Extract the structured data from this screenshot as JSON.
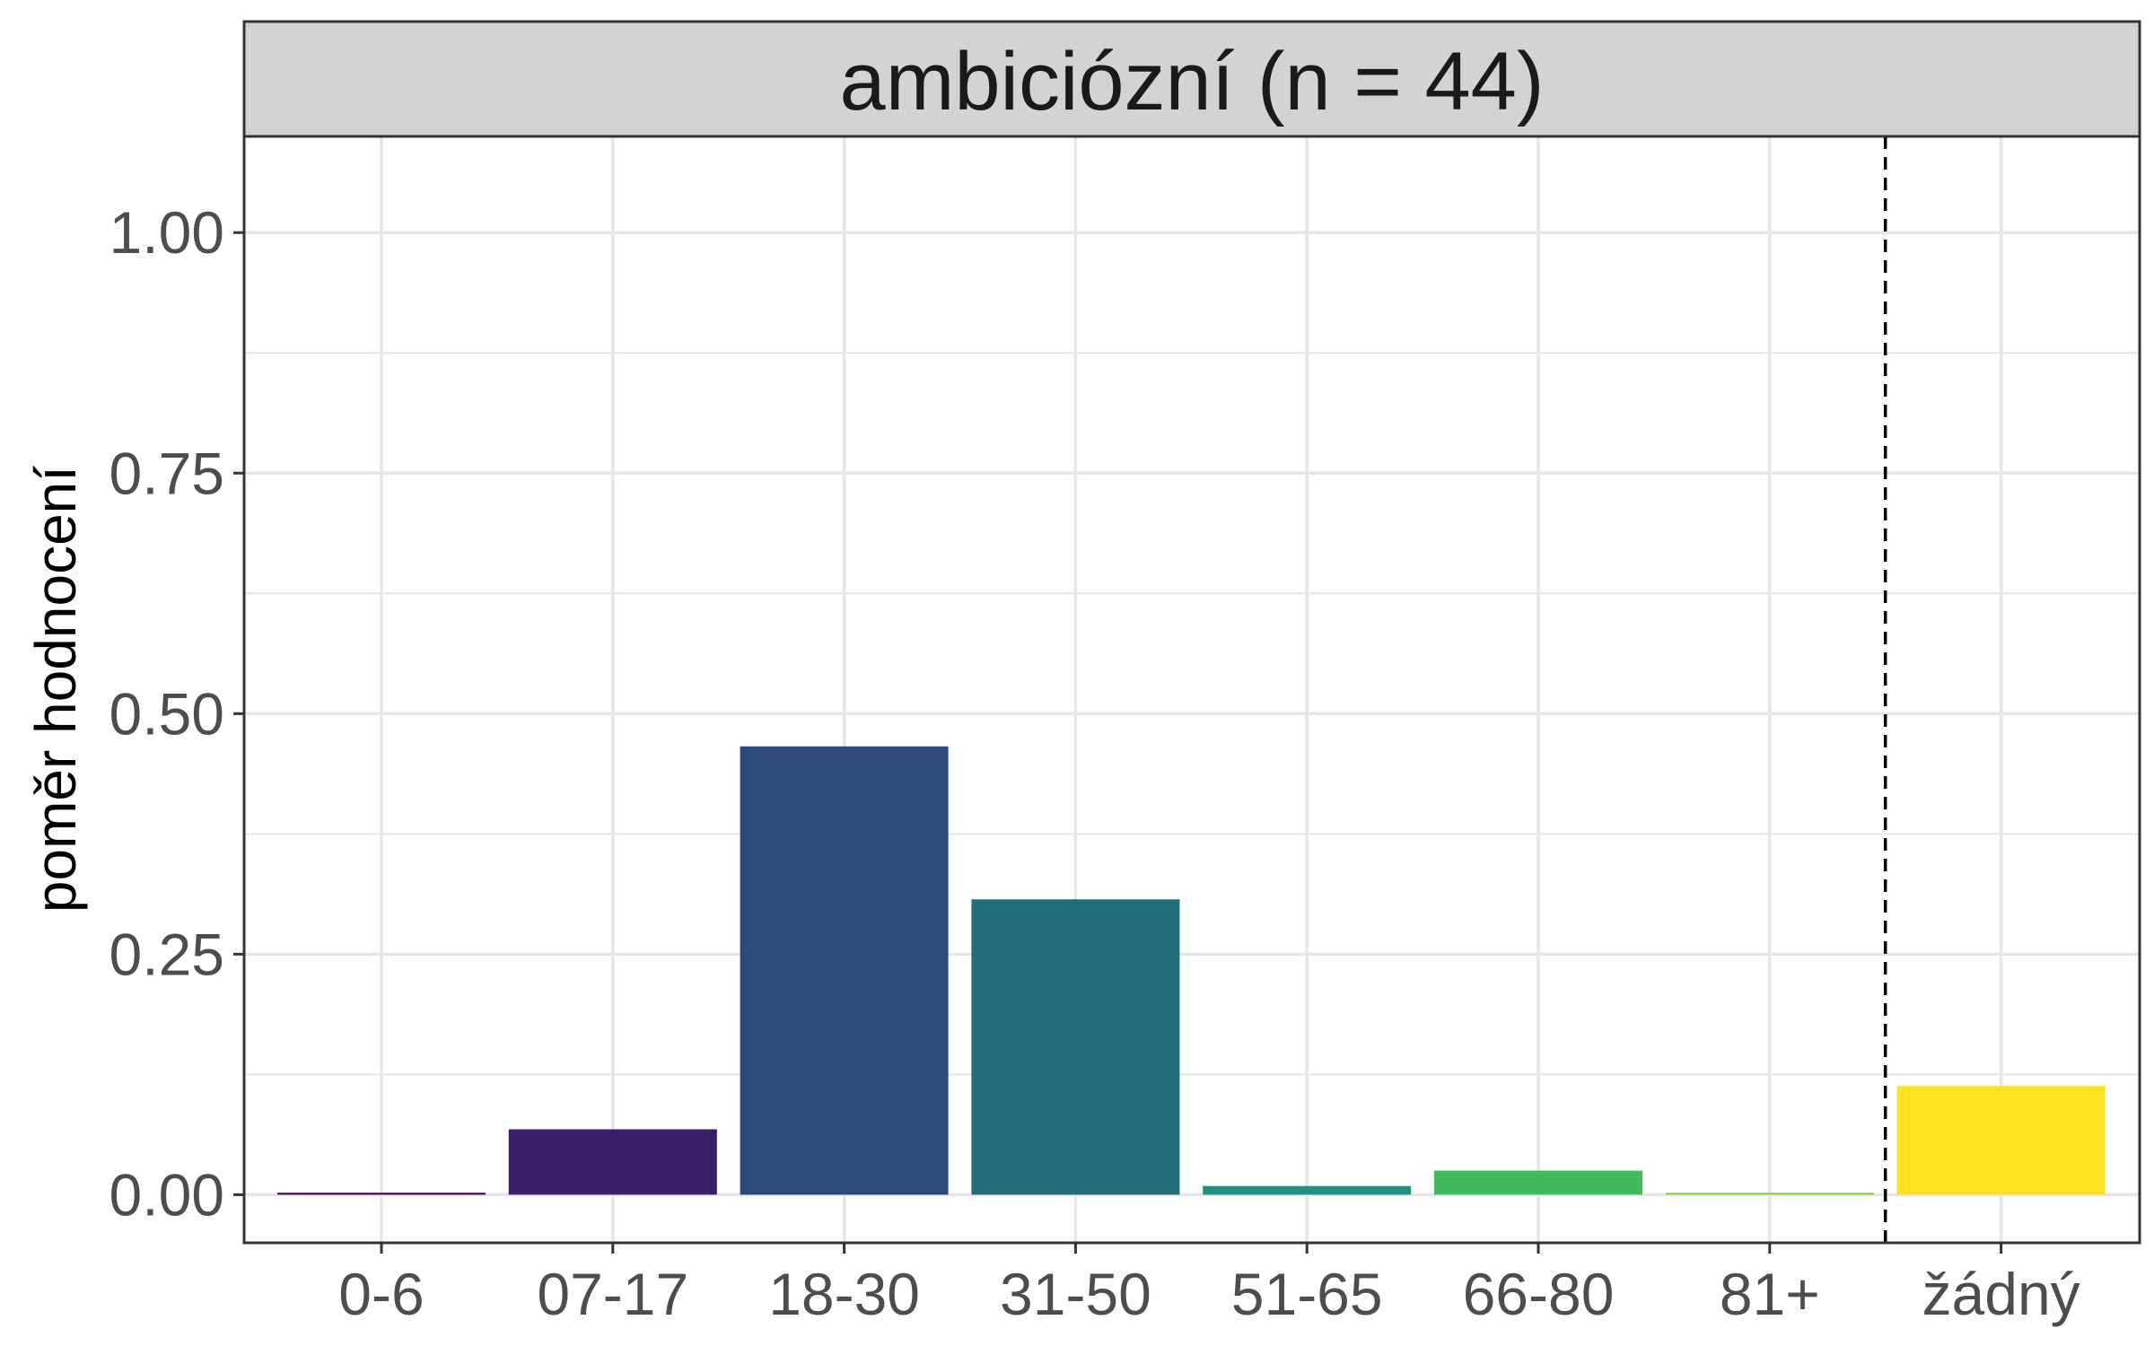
{
  "chart_data": {
    "type": "bar",
    "facet_title": "ambiciózní (n = 44)",
    "ylabel": "poměr hodnocení",
    "xlabel": "",
    "categories": [
      "0-6",
      "07-17",
      "18-30",
      "31-50",
      "51-65",
      "66-80",
      "81+",
      "žádný"
    ],
    "values": [
      0.002,
      0.068,
      0.466,
      0.307,
      0.009,
      0.025,
      0.002,
      0.113
    ],
    "colors": [
      "#440154",
      "#3B1F6B",
      "#2B4A78",
      "#216E7B",
      "#23907F",
      "#40BA5A",
      "#8ACF3F",
      "#FDE21F"
    ],
    "ylim": [
      -0.05,
      1.1
    ],
    "yticks": [
      "0.00",
      "0.25",
      "0.50",
      "0.75",
      "1.00"
    ],
    "ytick_values": [
      0,
      0.25,
      0.5,
      0.75,
      1.0
    ],
    "reference_line": {
      "style": "dashed",
      "between": [
        "81+",
        "žádný"
      ]
    },
    "grid": true,
    "theme": {
      "strip_fill": "#D3D3D3",
      "grid_color": "#E6E6E6",
      "border_color": "#333333"
    }
  }
}
